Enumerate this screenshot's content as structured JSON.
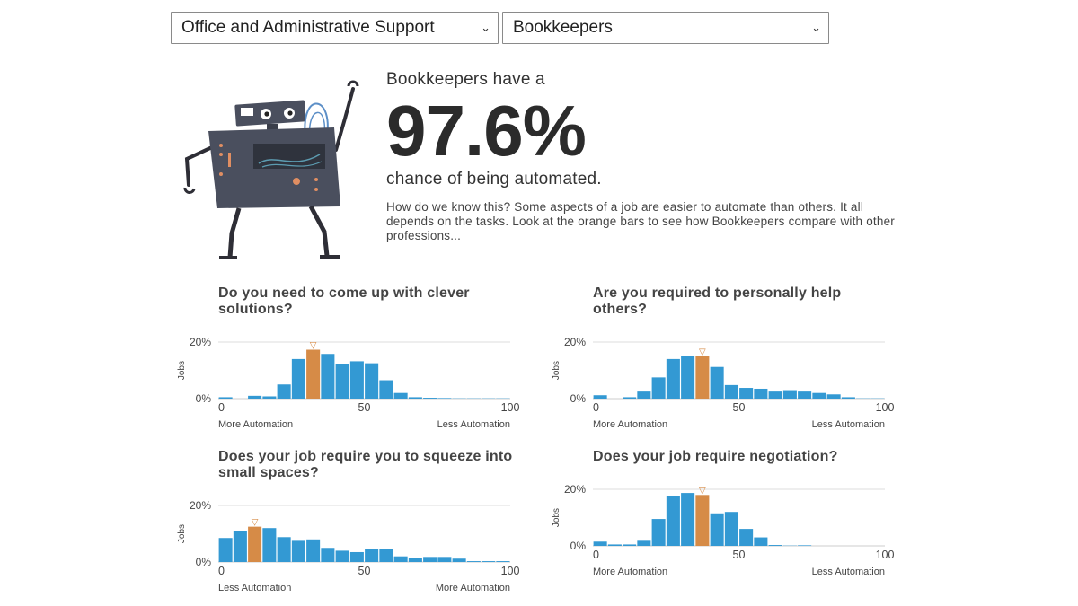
{
  "selects": {
    "category": "Office and Administrative Support",
    "job": "Bookkeepers"
  },
  "intro": {
    "pre": "Bookkeepers have a",
    "percent": "97.6%",
    "post": "chance of being automated.",
    "description": "How do we know this? Some aspects of a job are easier to automate than others. It all depends on the tasks. Look at the orange bars to see how Bookkeepers compare with other professions..."
  },
  "colors": {
    "bar": "#3399d3",
    "highlight": "#d68b47",
    "grid": "#dddddd",
    "text": "#444444",
    "robot_body": "#4a4f5e"
  },
  "chart_data": [
    {
      "type": "bar",
      "title": "Do you need to come up with clever solutions?",
      "ylabel": "Jobs",
      "ylim": [
        0,
        20
      ],
      "y_ticks": [
        "20%",
        "0%"
      ],
      "x_ticks": [
        "0",
        "50",
        "100"
      ],
      "left_label": "More Automation",
      "right_label": "Less Automation",
      "marker": "▽",
      "highlight_index": 6,
      "values": [
        0.5,
        0,
        1,
        0.8,
        5,
        14,
        17.3,
        15.8,
        12.3,
        13.2,
        12.5,
        6.5,
        2,
        0.5,
        0.3,
        0.2,
        0.1,
        0.1,
        0.1,
        0.1
      ]
    },
    {
      "type": "bar",
      "title": "Are you required to personally help others?",
      "ylabel": "Jobs",
      "ylim": [
        0,
        20
      ],
      "y_ticks": [
        "20%",
        "0%"
      ],
      "x_ticks": [
        "0",
        "50",
        "100"
      ],
      "left_label": "More Automation",
      "right_label": "Less Automation",
      "marker": "▽",
      "highlight_index": 7,
      "values": [
        1.2,
        0,
        0.5,
        2.5,
        7.5,
        14,
        15,
        15,
        11.2,
        4.8,
        3.8,
        3.5,
        2.5,
        3,
        2.5,
        2,
        1.5,
        0.5,
        0.1,
        0.1
      ]
    },
    {
      "type": "bar",
      "title": "Does your job require you to squeeze into small spaces?",
      "ylabel": "Jobs",
      "ylim": [
        0,
        20
      ],
      "y_ticks": [
        "20%",
        "0%"
      ],
      "x_ticks": [
        "0",
        "50",
        "100"
      ],
      "left_label": "Less Automation",
      "right_label": "More Automation",
      "marker": "▽",
      "highlight_index": 2,
      "values": [
        8.5,
        11,
        12.5,
        12,
        8.8,
        7.5,
        8,
        5,
        4,
        3.5,
        4.5,
        4.5,
        2,
        1.5,
        1.8,
        1.8,
        1.2,
        0.3,
        0.3,
        0.3
      ]
    },
    {
      "type": "bar",
      "title": "Does your job require negotiation?",
      "ylabel": "Jobs",
      "ylim": [
        0,
        20
      ],
      "y_ticks": [
        "20%",
        "0%"
      ],
      "x_ticks": [
        "0",
        "50",
        "100"
      ],
      "left_label": "More Automation",
      "right_label": "Less Automation",
      "marker": "▽",
      "highlight_index": 7,
      "values": [
        1.5,
        0.5,
        0.5,
        1.8,
        9.5,
        17.5,
        18.7,
        18,
        11.5,
        12,
        6,
        3,
        0.3,
        0.1,
        0.2,
        0,
        0,
        0,
        0,
        0
      ]
    }
  ]
}
